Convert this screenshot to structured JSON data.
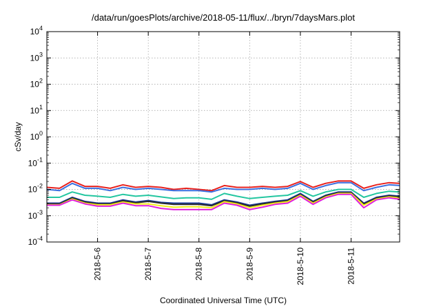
{
  "chart_data": {
    "type": "line",
    "title": "/data/run/goesPlots/archive/2018-05-11/flux/../bryn/7daysMars.plot",
    "xlabel": "Coordinated Universal Time (UTC)",
    "ylabel": "cSv/day",
    "y_scale": "log",
    "ylim": [
      0.0001,
      10000
    ],
    "y_ticks": [
      {
        "base": "10",
        "exp": "-4"
      },
      {
        "base": "10",
        "exp": "-3"
      },
      {
        "base": "10",
        "exp": "-2"
      },
      {
        "base": "10",
        "exp": "-1"
      },
      {
        "base": "10",
        "exp": "0"
      },
      {
        "base": "10",
        "exp": "1"
      },
      {
        "base": "10",
        "exp": "2"
      },
      {
        "base": "10",
        "exp": "3"
      },
      {
        "base": "10",
        "exp": "4"
      }
    ],
    "x_ticks": [
      "2018-5-6",
      "2018-5-7",
      "2018-5-8",
      "2018-5-9",
      "2018-5-10",
      "2018-5-11"
    ],
    "xlim": [
      "2018-05-05 00:00",
      "2018-05-11 23:00"
    ],
    "grid": true,
    "legend": "none",
    "x": [
      "2018-05-05 00:00",
      "2018-05-05 06:00",
      "2018-05-05 12:00",
      "2018-05-05 18:00",
      "2018-05-06 00:00",
      "2018-05-06 06:00",
      "2018-05-06 12:00",
      "2018-05-06 18:00",
      "2018-05-07 00:00",
      "2018-05-07 06:00",
      "2018-05-07 12:00",
      "2018-05-07 18:00",
      "2018-05-08 00:00",
      "2018-05-08 06:00",
      "2018-05-08 12:00",
      "2018-05-08 18:00",
      "2018-05-09 00:00",
      "2018-05-09 06:00",
      "2018-05-09 12:00",
      "2018-05-09 18:00",
      "2018-05-10 00:00",
      "2018-05-10 06:00",
      "2018-05-10 12:00",
      "2018-05-10 18:00",
      "2018-05-11 00:00",
      "2018-05-11 06:00",
      "2018-05-11 12:00",
      "2018-05-11 18:00",
      "2018-05-11 23:00"
    ],
    "series": [
      {
        "color": "#e8201c",
        "values": [
          0.012,
          0.011,
          0.021,
          0.013,
          0.013,
          0.011,
          0.015,
          0.012,
          0.013,
          0.012,
          0.01,
          0.011,
          0.01,
          0.009,
          0.014,
          0.012,
          0.012,
          0.013,
          0.012,
          0.013,
          0.02,
          0.012,
          0.017,
          0.021,
          0.021,
          0.011,
          0.015,
          0.018,
          0.017
        ]
      },
      {
        "color": "#3a6fe0",
        "values": [
          0.01,
          0.009,
          0.017,
          0.011,
          0.011,
          0.009,
          0.012,
          0.01,
          0.011,
          0.01,
          0.009,
          0.009,
          0.009,
          0.008,
          0.011,
          0.01,
          0.01,
          0.011,
          0.01,
          0.011,
          0.017,
          0.01,
          0.014,
          0.018,
          0.018,
          0.009,
          0.012,
          0.015,
          0.014
        ]
      },
      {
        "color": "#22c6a0",
        "values": [
          0.005,
          0.005,
          0.008,
          0.006,
          0.0055,
          0.005,
          0.0065,
          0.0055,
          0.006,
          0.0052,
          0.0045,
          0.0048,
          0.0048,
          0.0042,
          0.007,
          0.0055,
          0.0045,
          0.005,
          0.0055,
          0.006,
          0.009,
          0.0055,
          0.008,
          0.01,
          0.01,
          0.005,
          0.007,
          0.0085,
          0.008
        ]
      },
      {
        "color": "#1a3a9a",
        "values": [
          0.003,
          0.003,
          0.005,
          0.0035,
          0.003,
          0.003,
          0.004,
          0.0033,
          0.0038,
          0.0032,
          0.003,
          0.003,
          0.003,
          0.0026,
          0.004,
          0.0033,
          0.0025,
          0.003,
          0.0035,
          0.004,
          0.007,
          0.0035,
          0.006,
          0.008,
          0.008,
          0.003,
          0.005,
          0.006,
          0.0055
        ]
      },
      {
        "color": "#2b2b2b",
        "values": [
          0.0028,
          0.0028,
          0.0047,
          0.0033,
          0.0028,
          0.0028,
          0.0037,
          0.0031,
          0.0035,
          0.003,
          0.0027,
          0.0027,
          0.0027,
          0.0024,
          0.0037,
          0.0031,
          0.0023,
          0.0028,
          0.0033,
          0.0037,
          0.0065,
          0.0033,
          0.0057,
          0.0075,
          0.0075,
          0.0028,
          0.0047,
          0.0057,
          0.0052
        ]
      },
      {
        "color": "#f2ee1c",
        "values": [
          0.0026,
          0.0026,
          0.0043,
          0.003,
          0.0026,
          0.0026,
          0.0033,
          0.0028,
          0.0028,
          0.0024,
          0.0021,
          0.0022,
          0.0022,
          0.002,
          0.0034,
          0.0028,
          0.002,
          0.0025,
          0.003,
          0.0034,
          0.006,
          0.003,
          0.0052,
          0.007,
          0.007,
          0.0025,
          0.0043,
          0.0052,
          0.0047
        ]
      },
      {
        "color": "#e01ee0",
        "values": [
          0.0025,
          0.0025,
          0.004,
          0.0028,
          0.0023,
          0.0023,
          0.003,
          0.0024,
          0.0024,
          0.0019,
          0.0017,
          0.0017,
          0.0017,
          0.0017,
          0.003,
          0.0025,
          0.0017,
          0.0021,
          0.0027,
          0.003,
          0.0055,
          0.0027,
          0.0048,
          0.0065,
          0.0065,
          0.002,
          0.004,
          0.0048,
          0.0042
        ]
      }
    ]
  }
}
